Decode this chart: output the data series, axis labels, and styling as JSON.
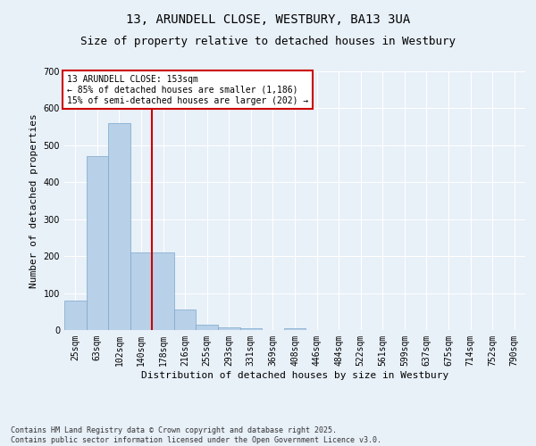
{
  "title": "13, ARUNDELL CLOSE, WESTBURY, BA13 3UA",
  "subtitle": "Size of property relative to detached houses in Westbury",
  "xlabel": "Distribution of detached houses by size in Westbury",
  "ylabel": "Number of detached properties",
  "footnote": "Contains HM Land Registry data © Crown copyright and database right 2025.\nContains public sector information licensed under the Open Government Licence v3.0.",
  "categories": [
    "25sqm",
    "63sqm",
    "102sqm",
    "140sqm",
    "178sqm",
    "216sqm",
    "255sqm",
    "293sqm",
    "331sqm",
    "369sqm",
    "408sqm",
    "446sqm",
    "484sqm",
    "522sqm",
    "561sqm",
    "599sqm",
    "637sqm",
    "675sqm",
    "714sqm",
    "752sqm",
    "790sqm"
  ],
  "values": [
    80,
    470,
    560,
    210,
    210,
    55,
    15,
    8,
    5,
    0,
    5,
    0,
    0,
    0,
    0,
    0,
    0,
    0,
    0,
    0,
    0
  ],
  "bar_color": "#b8d0e8",
  "bar_edge_color": "#7aa8cc",
  "vline_x": 3.5,
  "vline_color": "#cc0000",
  "ylim": [
    0,
    700
  ],
  "yticks": [
    0,
    100,
    200,
    300,
    400,
    500,
    600,
    700
  ],
  "annotation_text": "13 ARUNDELL CLOSE: 153sqm\n← 85% of detached houses are smaller (1,186)\n15% of semi-detached houses are larger (202) →",
  "annotation_box_color": "#ffffff",
  "annotation_box_edge": "#cc0000",
  "background_color": "#e8f0f8",
  "grid_color": "#ffffff",
  "title_fontsize": 10,
  "subtitle_fontsize": 9,
  "label_fontsize": 8,
  "tick_fontsize": 7,
  "annot_fontsize": 7
}
